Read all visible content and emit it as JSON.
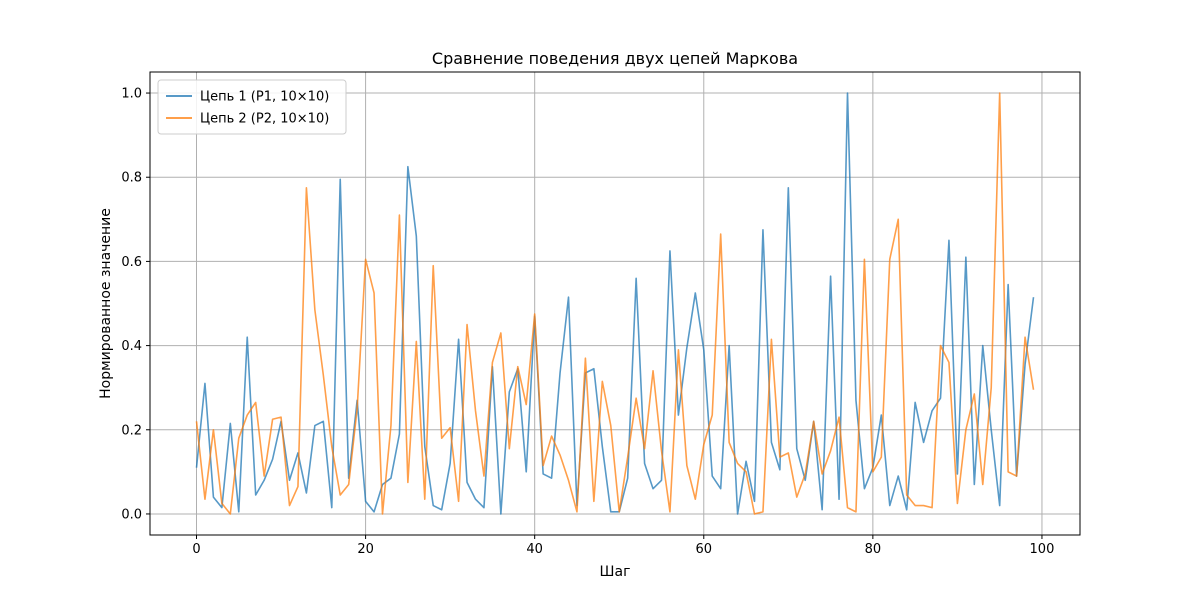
{
  "chart_data": {
    "type": "line",
    "title": "Сравнение поведения двух цепей Маркова",
    "xlabel": "Шаг",
    "ylabel": "Нормированное значение",
    "xlim": [
      -5.5,
      104.5
    ],
    "ylim": [
      -0.05,
      1.05
    ],
    "xticks": [
      0,
      20,
      40,
      60,
      80,
      100
    ],
    "yticks": [
      0.0,
      0.2,
      0.4,
      0.6,
      0.8,
      1.0
    ],
    "grid": true,
    "legend_position": "upper-left",
    "x": [
      0,
      1,
      2,
      3,
      4,
      5,
      6,
      7,
      8,
      9,
      10,
      11,
      12,
      13,
      14,
      15,
      16,
      17,
      18,
      19,
      20,
      21,
      22,
      23,
      24,
      25,
      26,
      27,
      28,
      29,
      30,
      31,
      32,
      33,
      34,
      35,
      36,
      37,
      38,
      39,
      40,
      41,
      42,
      43,
      44,
      45,
      46,
      47,
      48,
      49,
      50,
      51,
      52,
      53,
      54,
      55,
      56,
      57,
      58,
      59,
      60,
      61,
      62,
      63,
      64,
      65,
      66,
      67,
      68,
      69,
      70,
      71,
      72,
      73,
      74,
      75,
      76,
      77,
      78,
      79,
      80,
      81,
      82,
      83,
      84,
      85,
      86,
      87,
      88,
      89,
      90,
      91,
      92,
      93,
      94,
      95,
      96,
      97,
      98,
      99
    ],
    "series": [
      {
        "name": "Цепь 1 (P1, 10×10)",
        "color": "#1f77b4",
        "values": [
          0.11,
          0.31,
          0.04,
          0.015,
          0.215,
          0.005,
          0.42,
          0.045,
          0.08,
          0.13,
          0.22,
          0.08,
          0.145,
          0.05,
          0.21,
          0.22,
          0.015,
          0.795,
          0.085,
          0.27,
          0.03,
          0.005,
          0.07,
          0.085,
          0.19,
          0.825,
          0.66,
          0.16,
          0.02,
          0.01,
          0.12,
          0.415,
          0.075,
          0.035,
          0.015,
          0.35,
          0.0,
          0.29,
          0.345,
          0.1,
          0.47,
          0.095,
          0.085,
          0.335,
          0.515,
          0.02,
          0.335,
          0.345,
          0.16,
          0.005,
          0.005,
          0.085,
          0.56,
          0.12,
          0.06,
          0.08,
          0.625,
          0.235,
          0.395,
          0.525,
          0.39,
          0.09,
          0.06,
          0.4,
          0.0,
          0.125,
          0.03,
          0.675,
          0.17,
          0.105,
          0.775,
          0.155,
          0.08,
          0.22,
          0.01,
          0.565,
          0.035,
          1.0,
          0.27,
          0.06,
          0.11,
          0.235,
          0.02,
          0.09,
          0.01,
          0.265,
          0.17,
          0.245,
          0.275,
          0.65,
          0.095,
          0.61,
          0.07,
          0.4,
          0.2,
          0.02,
          0.545,
          0.09,
          0.355,
          0.515
        ]
      },
      {
        "name": "Цепь 2 (P2, 10×10)",
        "color": "#ff7f0e",
        "values": [
          0.22,
          0.035,
          0.2,
          0.025,
          0.0,
          0.18,
          0.235,
          0.265,
          0.09,
          0.225,
          0.23,
          0.02,
          0.065,
          0.775,
          0.485,
          0.33,
          0.16,
          0.045,
          0.07,
          0.25,
          0.605,
          0.525,
          0.0,
          0.21,
          0.71,
          0.075,
          0.41,
          0.035,
          0.59,
          0.18,
          0.205,
          0.03,
          0.45,
          0.245,
          0.09,
          0.36,
          0.43,
          0.155,
          0.35,
          0.26,
          0.475,
          0.115,
          0.185,
          0.14,
          0.08,
          0.005,
          0.37,
          0.03,
          0.315,
          0.21,
          0.005,
          0.135,
          0.275,
          0.155,
          0.34,
          0.15,
          0.005,
          0.39,
          0.115,
          0.035,
          0.165,
          0.235,
          0.665,
          0.17,
          0.12,
          0.1,
          0.0,
          0.005,
          0.415,
          0.135,
          0.145,
          0.04,
          0.095,
          0.22,
          0.095,
          0.15,
          0.23,
          0.015,
          0.005,
          0.605,
          0.1,
          0.135,
          0.605,
          0.7,
          0.045,
          0.02,
          0.02,
          0.015,
          0.4,
          0.36,
          0.025,
          0.2,
          0.285,
          0.07,
          0.3,
          1.0,
          0.1,
          0.09,
          0.42,
          0.295
        ]
      }
    ]
  }
}
